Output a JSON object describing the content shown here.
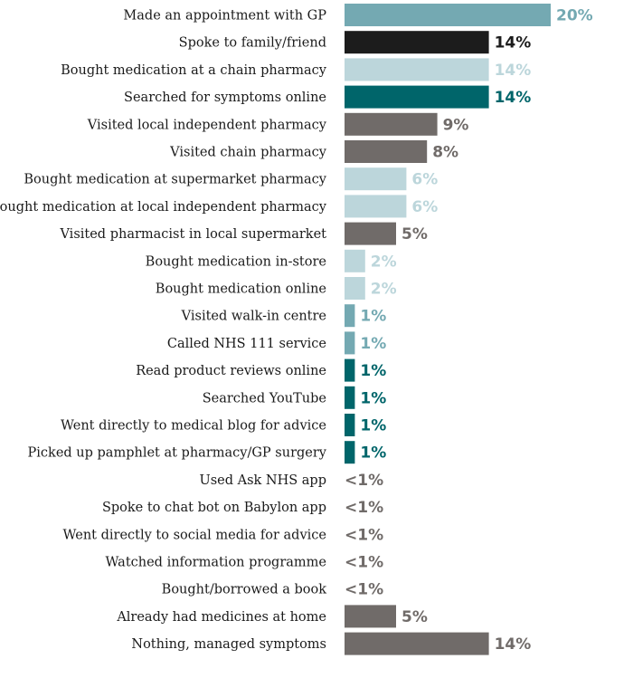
{
  "chart_data": {
    "type": "bar",
    "orientation": "horizontal",
    "title": "",
    "xlabel": "",
    "ylabel": "",
    "xlim": [
      0,
      20
    ],
    "grid": false,
    "legend": "none",
    "categories": [
      "Made an appointment with GP",
      "Spoke to family/friend",
      "Bought medication at a chain pharmacy",
      "Searched for symptoms online",
      "Visited local independent pharmacy",
      "Visited chain pharmacy",
      "Bought medication at supermarket pharmacy",
      "Bought medication at local independent pharmacy",
      "Visited pharmacist in local supermarket",
      "Bought medication in-store",
      "Bought medication online",
      "Visited walk-in centre",
      "Called NHS 111 service",
      "Read product reviews online",
      "Searched YouTube",
      "Went directly to medical blog for advice",
      "Picked up pamphlet at pharmacy/GP surgery",
      "Used Ask NHS app",
      "Spoke to chat bot on Babylon app",
      "Went directly to social media for advice",
      "Watched information programme",
      "Bought/borrowed a book",
      "Already had medicines at home",
      "Nothing, managed symptoms"
    ],
    "values": [
      20,
      14,
      14,
      14,
      9,
      8,
      6,
      6,
      5,
      2,
      2,
      1,
      1,
      1,
      1,
      1,
      1,
      0,
      0,
      0,
      0,
      0,
      5,
      14
    ],
    "value_labels": [
      "20%",
      "14%",
      "14%",
      "14%",
      "9%",
      "8%",
      "6%",
      "6%",
      "5%",
      "2%",
      "2%",
      "1%",
      "1%",
      "1%",
      "1%",
      "1%",
      "1%",
      "<1%",
      "<1%",
      "<1%",
      "<1%",
      "<1%",
      "5%",
      "14%"
    ],
    "bar_colors": [
      "#74a9b2",
      "#1c1c1c",
      "#bcd6db",
      "#00656a",
      "#706b69",
      "#706b69",
      "#bcd6db",
      "#bcd6db",
      "#706b69",
      "#bcd6db",
      "#bcd6db",
      "#74a9b2",
      "#74a9b2",
      "#00656a",
      "#00656a",
      "#00656a",
      "#00656a",
      "#706b69",
      "#706b69",
      "#706b69",
      "#706b69",
      "#706b69",
      "#706b69",
      "#706b69"
    ],
    "label_colors": [
      "#74a9b2",
      "#1c1c1c",
      "#bcd6db",
      "#00656a",
      "#706b69",
      "#706b69",
      "#bcd6db",
      "#bcd6db",
      "#706b69",
      "#bcd6db",
      "#bcd6db",
      "#74a9b2",
      "#74a9b2",
      "#00656a",
      "#00656a",
      "#00656a",
      "#00656a",
      "#706b69",
      "#706b69",
      "#706b69",
      "#706b69",
      "#706b69",
      "#706b69",
      "#706b69"
    ]
  }
}
